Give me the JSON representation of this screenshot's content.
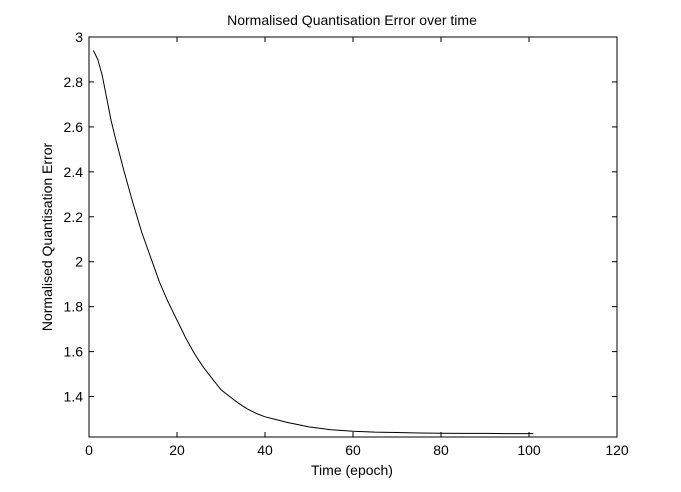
{
  "chart_data": {
    "type": "line",
    "title": "Normalised Quantisation Error over time",
    "xlabel": "Time (epoch)",
    "ylabel": "Normalised Quantisation Error",
    "xlim": [
      0,
      120
    ],
    "ylim": [
      1.22,
      3.0
    ],
    "xticks": [
      0,
      20,
      40,
      60,
      80,
      100,
      120
    ],
    "yticks": [
      1.4,
      1.6,
      1.8,
      2.0,
      2.2,
      2.4,
      2.6,
      2.8,
      3.0
    ],
    "xtick_labels": [
      "0",
      "20",
      "40",
      "60",
      "80",
      "100",
      "120"
    ],
    "ytick_labels": [
      "1.4",
      "1.6",
      "1.8",
      "2",
      "2.2",
      "2.4",
      "2.6",
      "2.8",
      "3"
    ],
    "grid": false,
    "line_color": "#000000",
    "series": [
      {
        "x": [
          1,
          2,
          3,
          4,
          5,
          6,
          8,
          10,
          12,
          14,
          16,
          18,
          20,
          22,
          24,
          26,
          28,
          30,
          32,
          34,
          36,
          38,
          40,
          42,
          45,
          50,
          55,
          60,
          65,
          70,
          75,
          80,
          85,
          90,
          95,
          100,
          101
        ],
        "y": [
          2.94,
          2.9,
          2.83,
          2.73,
          2.63,
          2.55,
          2.4,
          2.26,
          2.13,
          2.02,
          1.91,
          1.82,
          1.74,
          1.66,
          1.59,
          1.53,
          1.48,
          1.43,
          1.4,
          1.37,
          1.345,
          1.325,
          1.31,
          1.3,
          1.285,
          1.265,
          1.252,
          1.246,
          1.242,
          1.24,
          1.238,
          1.237,
          1.236,
          1.236,
          1.235,
          1.235,
          1.235
        ]
      }
    ]
  }
}
